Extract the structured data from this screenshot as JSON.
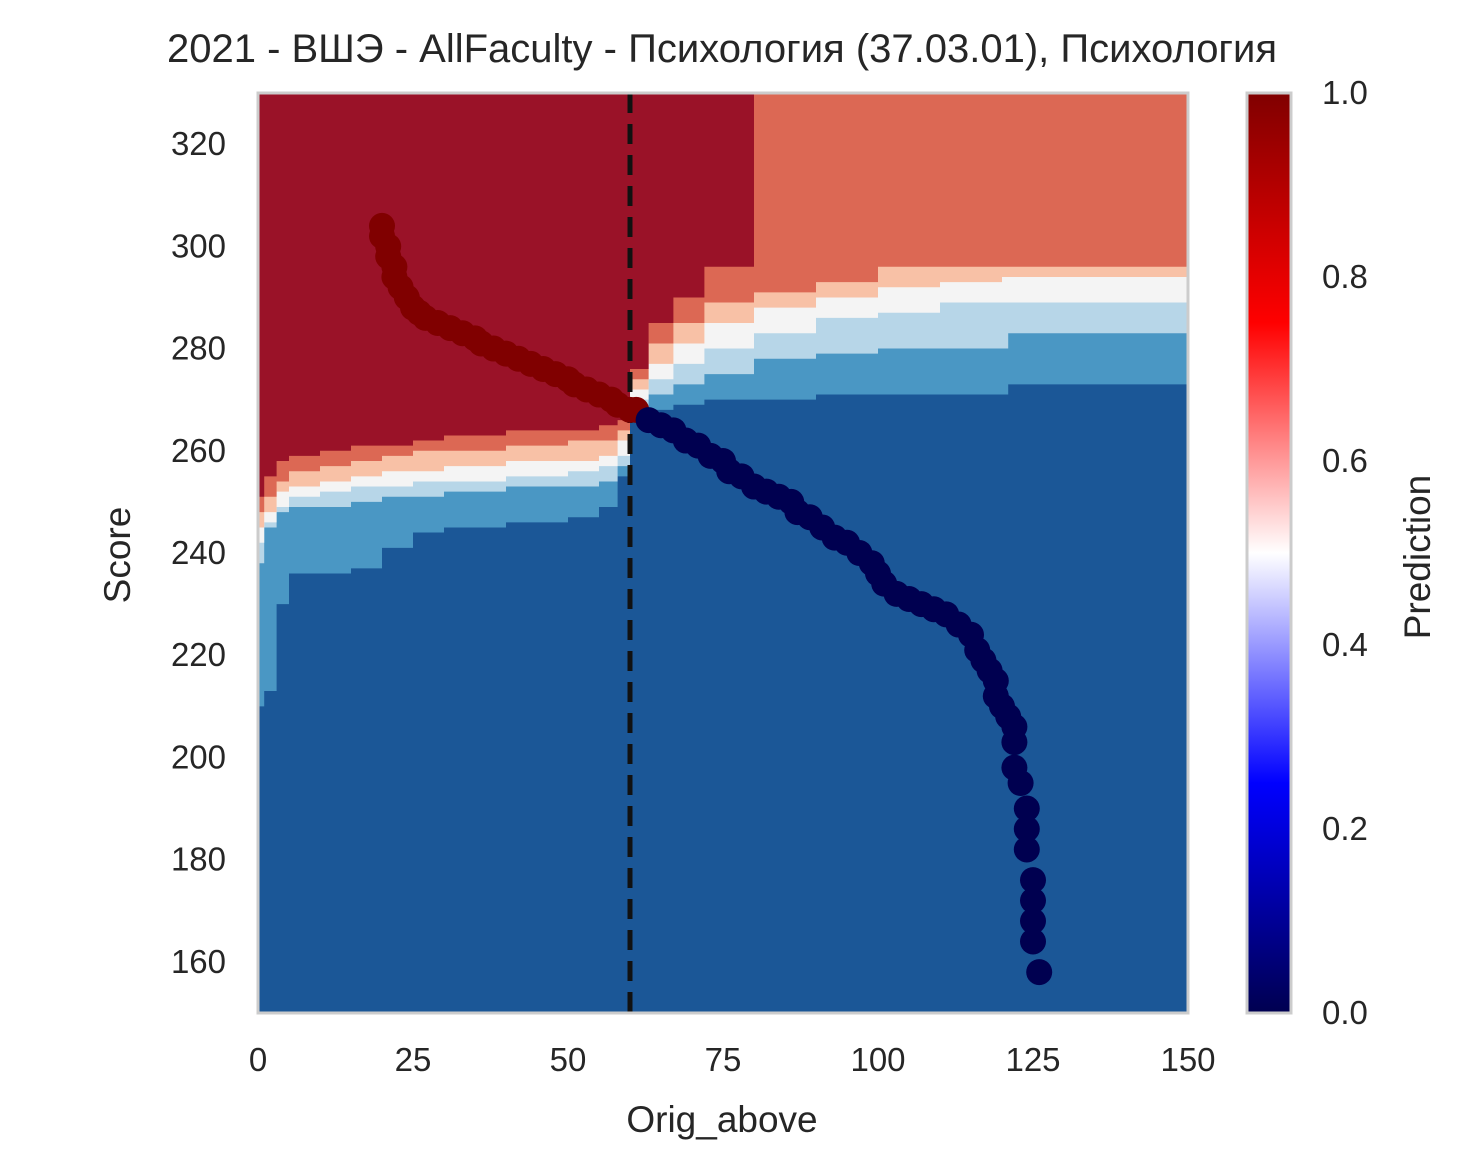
{
  "chart_data": {
    "type": "scatter",
    "title": "2021 - ВШЭ - AllFaculty - Психология (37.03.01), Психология",
    "xlabel": "Orig_above",
    "ylabel": "Score",
    "xlim": [
      0,
      150
    ],
    "ylim": [
      150,
      330
    ],
    "xticks": [
      "0",
      "25",
      "50",
      "75",
      "100",
      "125",
      "150"
    ],
    "yticks": [
      "160",
      "180",
      "200",
      "220",
      "240",
      "260",
      "280",
      "300",
      "320"
    ],
    "grid": false,
    "threshold_line": {
      "x": 60,
      "style": "dashed",
      "color": "#111111"
    },
    "background": {
      "type": "contourf",
      "levels": [
        {
          "range": [
            0.0,
            0.2
          ],
          "color": "#1b5797"
        },
        {
          "range": [
            0.2,
            0.3
          ],
          "color": "#4a97c4"
        },
        {
          "range": [
            0.3,
            0.45
          ],
          "color": "#b7d6e8"
        },
        {
          "range": [
            0.45,
            0.55
          ],
          "color": "#f4f4f4"
        },
        {
          "range": [
            0.55,
            0.7
          ],
          "color": "#f8c1a6"
        },
        {
          "range": [
            0.7,
            0.8
          ],
          "color": "#dc6854"
        },
        {
          "range": [
            0.8,
            1.0
          ],
          "color": "#9a1228"
        }
      ],
      "boundaries": {
        "left_region": [
          {
            "x": [
              0,
              1,
              3,
              5,
              10,
              15,
              20,
              25,
              30,
              40,
              50,
              55,
              58,
              60
            ],
            "level_0.2": [
              210,
              213,
              230,
              236,
              236,
              237,
              241,
              244,
              245,
              246,
              247,
              249,
              255,
              262
            ],
            "level_0.3": [
              238,
              245,
              248,
              249,
              249,
              250,
              251,
              251,
              252,
              253,
              253,
              254,
              257,
              263
            ],
            "level_0.45": [
              242,
              246,
              249,
              251,
              252,
              253,
              253,
              254,
              254,
              255,
              256,
              257,
              259,
              265
            ],
            "level_0.55": [
              245,
              248,
              252,
              253,
              254,
              255,
              256,
              256,
              257,
              258,
              258,
              259,
              262,
              266
            ],
            "level_0.7": [
              248,
              251,
              254,
              256,
              257,
              258,
              259,
              260,
              260,
              261,
              262,
              262,
              264,
              267
            ],
            "level_0.8": [
              251,
              255,
              258,
              259,
              260,
              261,
              261,
              262,
              263,
              264,
              264,
              265,
              266,
              268
            ]
          }
        ],
        "right_region": [
          {
            "x": [
              60,
              63,
              67,
              72,
              80,
              90,
              100,
              110,
              120,
              121,
              150
            ],
            "level_0.2": [
              266,
              268,
              269,
              270,
              270,
              271,
              271,
              271,
              271,
              273,
              273
            ],
            "level_0.3": [
              268,
              271,
              273,
              275,
              278,
              279,
              280,
              280,
              280,
              283,
              283
            ],
            "level_0.45": [
              270,
              274,
              277,
              280,
              283,
              286,
              287,
              289,
              289,
              289,
              289
            ],
            "level_0.55": [
              272,
              277,
              281,
              285,
              288,
              290,
              292,
              293,
              294,
              294,
              296
            ],
            "level_0.7": [
              274,
              281,
              285,
              289,
              291,
              293,
              296,
              296,
              296,
              296,
              302
            ],
            "level_0.8": [
              276,
              285,
              290,
              296,
              303,
              303,
              303,
              303,
              303,
              303,
              303
            ]
          }
        ],
        "top_right_block": {
          "x_from": 80,
          "y_from": 303,
          "color": "#dc6854"
        }
      }
    },
    "series": [
      {
        "group": "admitted",
        "color": "#800000",
        "points": [
          [
            20,
            304
          ],
          [
            20,
            302
          ],
          [
            21,
            300
          ],
          [
            21,
            298
          ],
          [
            22,
            296
          ],
          [
            22,
            294
          ],
          [
            23,
            292
          ],
          [
            24,
            290
          ],
          [
            25,
            288
          ],
          [
            26,
            287
          ],
          [
            27,
            286
          ],
          [
            29,
            285
          ],
          [
            31,
            284
          ],
          [
            33,
            283
          ],
          [
            35,
            282
          ],
          [
            36,
            281
          ],
          [
            38,
            280
          ],
          [
            40,
            279
          ],
          [
            42,
            278
          ],
          [
            44,
            277
          ],
          [
            46,
            276
          ],
          [
            48,
            275
          ],
          [
            50,
            274
          ],
          [
            51,
            273
          ],
          [
            53,
            272
          ],
          [
            55,
            271
          ],
          [
            57,
            270
          ],
          [
            58,
            269
          ],
          [
            60,
            268
          ],
          [
            61,
            268
          ]
        ]
      },
      {
        "group": "not_admitted",
        "color": "#000050",
        "points": [
          [
            63,
            266
          ],
          [
            65,
            265
          ],
          [
            67,
            264
          ],
          [
            69,
            262
          ],
          [
            71,
            261
          ],
          [
            73,
            259
          ],
          [
            75,
            258
          ],
          [
            76,
            256
          ],
          [
            78,
            255
          ],
          [
            80,
            253
          ],
          [
            82,
            252
          ],
          [
            84,
            251
          ],
          [
            86,
            250
          ],
          [
            87,
            248
          ],
          [
            89,
            247
          ],
          [
            91,
            245
          ],
          [
            93,
            243
          ],
          [
            95,
            242
          ],
          [
            97,
            240
          ],
          [
            99,
            238
          ],
          [
            100,
            236
          ],
          [
            101,
            234
          ],
          [
            103,
            232
          ],
          [
            105,
            231
          ],
          [
            107,
            230
          ],
          [
            109,
            229
          ],
          [
            111,
            228
          ],
          [
            113,
            226
          ],
          [
            115,
            224
          ],
          [
            116,
            221
          ],
          [
            117,
            219
          ],
          [
            118,
            217
          ],
          [
            119,
            215
          ],
          [
            119,
            212
          ],
          [
            120,
            210
          ],
          [
            121,
            208
          ],
          [
            122,
            206
          ],
          [
            122,
            203
          ],
          [
            122,
            198
          ],
          [
            123,
            195
          ],
          [
            124,
            190
          ],
          [
            124,
            186
          ],
          [
            124,
            182
          ],
          [
            125,
            176
          ],
          [
            125,
            172
          ],
          [
            125,
            168
          ],
          [
            125,
            164
          ],
          [
            126,
            158
          ]
        ]
      }
    ],
    "colorbar": {
      "label": "Prediction",
      "range": [
        0.0,
        1.0
      ],
      "ticks": [
        "0.0",
        "0.2",
        "0.4",
        "0.6",
        "0.8",
        "1.0"
      ],
      "colormap": "seismic",
      "stops": [
        {
          "value": 0.0,
          "color": "#000050"
        },
        {
          "value": 0.25,
          "color": "#0000ff"
        },
        {
          "value": 0.5,
          "color": "#ffffff"
        },
        {
          "value": 0.75,
          "color": "#ff0000"
        },
        {
          "value": 1.0,
          "color": "#800000"
        }
      ]
    }
  }
}
